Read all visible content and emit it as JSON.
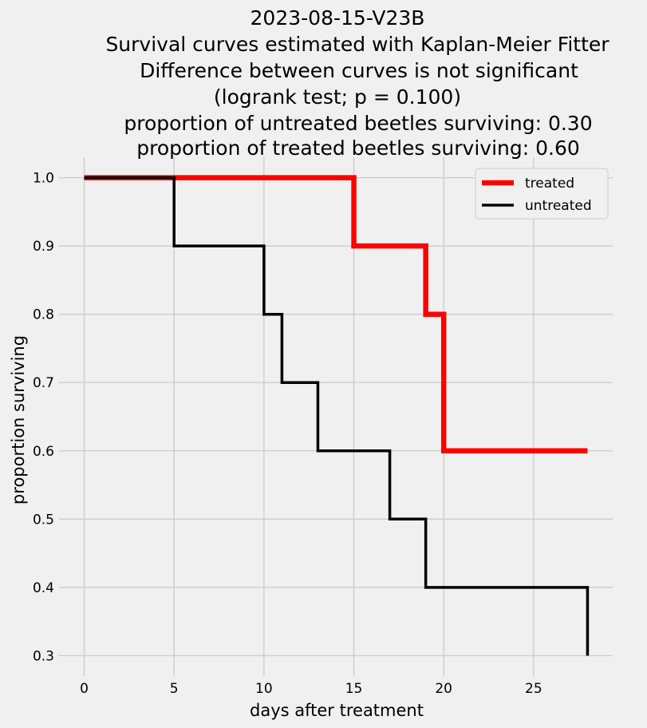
{
  "chart_data": {
    "type": "line",
    "step": "post",
    "title_lines": [
      "2023-08-15-V23B",
      "Survival curves estimated with Kaplan-Meier Fitter",
      "Difference between curves is not significant",
      "(logrank test; p = 0.100)",
      "proportion of untreated beetles surviving: 0.30",
      "proportion of treated beetles surviving: 0.60"
    ],
    "xlabel": "days after treatment",
    "ylabel": "proportion surviving",
    "xlim": [
      -1.4,
      29.4
    ],
    "ylim": [
      0.27,
      1.03
    ],
    "xticks": [
      0,
      5,
      10,
      15,
      20,
      25
    ],
    "xtick_labels": [
      "0",
      "5",
      "10",
      "15",
      "20",
      "25"
    ],
    "yticks": [
      0.3,
      0.4,
      0.5,
      0.6,
      0.7,
      0.8,
      0.9,
      1.0
    ],
    "ytick_labels": [
      "0.3",
      "0.4",
      "0.5",
      "0.6",
      "0.7",
      "0.8",
      "0.9",
      "1.0"
    ],
    "grid": true,
    "legend_position": "upper right",
    "series": [
      {
        "name": "treated",
        "color": "#ff0000",
        "x": [
          0,
          15,
          19,
          20,
          28
        ],
        "y": [
          1.0,
          0.9,
          0.8,
          0.6,
          0.6
        ]
      },
      {
        "name": "untreated",
        "color": "#000000",
        "x": [
          0,
          5,
          10,
          11,
          13,
          17,
          19,
          28,
          28
        ],
        "y": [
          1.0,
          0.9,
          0.8,
          0.7,
          0.6,
          0.5,
          0.4,
          0.4,
          0.3
        ]
      }
    ]
  }
}
